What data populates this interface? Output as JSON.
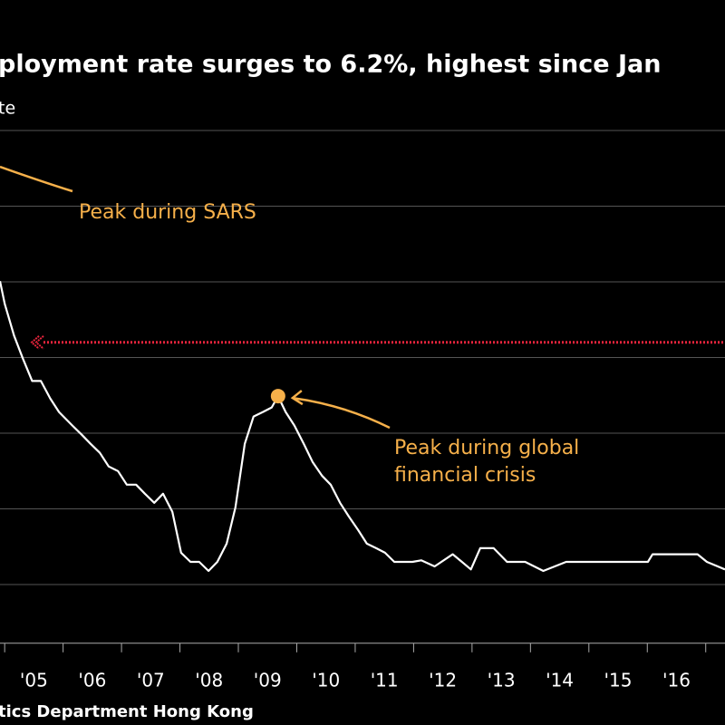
{
  "chart_data": {
    "type": "line",
    "title": "ployment rate surges to 6.2%, highest since Jan",
    "subtitle": "te",
    "source": "tics Department Hong Kong",
    "annotations": [
      {
        "text": "Peak during SARS"
      },
      {
        "text": "Peak during global",
        "text2": "financial crisis",
        "x": 2009.68,
        "y": 5.49,
        "color": "#f6b04a"
      }
    ],
    "reference_line": {
      "value": 6.2,
      "color": "#e8243c"
    },
    "categories": [
      "'05",
      "'06",
      "'07",
      "'08",
      "'09",
      "'10",
      "'11",
      "'12",
      "'13",
      "'14",
      "'15",
      "'16"
    ],
    "category_x": [
      2005.5,
      2006.5,
      2007.5,
      2008.5,
      2009.5,
      2010.5,
      2011.5,
      2012.5,
      2013.5,
      2014.5,
      2015.5,
      2016.5
    ],
    "xlim": [
      2004.92,
      2017.33
    ],
    "xticks": [
      2005,
      2006,
      2007,
      2008,
      2009,
      2010,
      2011,
      2012,
      2013,
      2014,
      2015,
      2016,
      2017
    ],
    "ylim": [
      2.2,
      9.0
    ],
    "yticks": [
      3,
      4,
      5,
      6,
      7,
      8,
      9
    ],
    "grid": true,
    "series": [
      {
        "color": "#ffffff",
        "x": [
          2004.92,
          2005.0,
          2005.16,
          2005.31,
          2005.47,
          2005.62,
          2005.78,
          2005.93,
          2006.16,
          2006.32,
          2006.47,
          2006.63,
          2006.78,
          2006.94,
          2007.09,
          2007.25,
          2007.4,
          2007.56,
          2007.71,
          2007.87,
          2008.02,
          2008.18,
          2008.33,
          2008.49,
          2008.64,
          2008.8,
          2008.95,
          2009.11,
          2009.26,
          2009.42,
          2009.57,
          2009.68,
          2009.81,
          2009.96,
          2010.12,
          2010.27,
          2010.43,
          2010.58,
          2010.74,
          2010.89,
          2011.05,
          2011.2,
          2011.36,
          2011.51,
          2011.67,
          2011.98,
          2012.13,
          2012.36,
          2012.67,
          2012.98,
          2013.14,
          2013.37,
          2013.6,
          2013.91,
          2014.22,
          2014.61,
          2015.16,
          2016.01,
          2016.09,
          2016.86,
          2017.02,
          2017.33
        ],
        "values": [
          7.01,
          6.71,
          6.29,
          5.99,
          5.69,
          5.69,
          5.46,
          5.28,
          5.1,
          4.98,
          4.86,
          4.74,
          4.56,
          4.5,
          4.32,
          4.32,
          4.2,
          4.08,
          4.2,
          3.96,
          3.42,
          3.3,
          3.3,
          3.18,
          3.3,
          3.54,
          4.02,
          4.86,
          5.22,
          5.28,
          5.34,
          5.49,
          5.28,
          5.1,
          4.86,
          4.62,
          4.44,
          4.32,
          4.08,
          3.9,
          3.72,
          3.54,
          3.48,
          3.42,
          3.3,
          3.3,
          3.32,
          3.24,
          3.4,
          3.2,
          3.48,
          3.48,
          3.3,
          3.3,
          3.18,
          3.3,
          3.3,
          3.3,
          3.4,
          3.4,
          3.3,
          3.2
        ]
      }
    ]
  }
}
